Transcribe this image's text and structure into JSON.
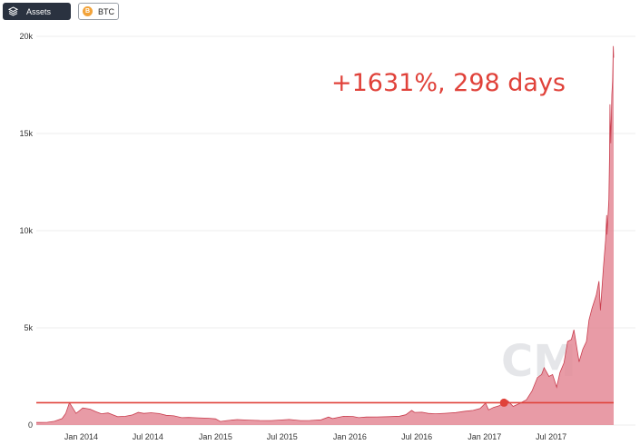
{
  "toolbar": {
    "assets_label": "Assets",
    "btc_label": "BTC",
    "btc_coin_glyph": "B",
    "assets_icon": "layers-icon",
    "btc_icon": "bitcoin-coin-icon",
    "btc_color": "#f2a33a"
  },
  "annotation": "+1631%, 298 days",
  "watermark": "CM",
  "colors": {
    "area_fill": "#e48996",
    "area_line": "#c93e4e",
    "threshold_line": "#e0423a",
    "marker": "#e0423a",
    "annotation": "#e0423a"
  },
  "chart_data": {
    "type": "area",
    "x_tick_labels": [
      "Jan 2014",
      "Jul 2014",
      "Jan 2015",
      "Jul 2015",
      "Jan 2016",
      "Jul 2016",
      "Jan 2017",
      "Jul 2017"
    ],
    "y_tick_labels": [
      "0",
      "5k",
      "10k",
      "15k",
      "20k"
    ],
    "y_ticks": [
      0,
      5000,
      10000,
      15000,
      20000
    ],
    "ylim": [
      0,
      20000
    ],
    "xlim": [
      "2013-09-01",
      "2017-12-18"
    ],
    "grid": true,
    "threshold_value": 1150,
    "marker": {
      "x": "2017-02-23",
      "y": 1150
    },
    "series": [
      {
        "points": [
          [
            "2013-09-01",
            130
          ],
          [
            "2013-10-01",
            140
          ],
          [
            "2013-10-20",
            190
          ],
          [
            "2013-11-10",
            330
          ],
          [
            "2013-11-20",
            600
          ],
          [
            "2013-11-30",
            1150
          ],
          [
            "2013-12-05",
            1000
          ],
          [
            "2013-12-18",
            600
          ],
          [
            "2013-12-25",
            700
          ],
          [
            "2014-01-05",
            880
          ],
          [
            "2014-01-25",
            820
          ],
          [
            "2014-02-10",
            680
          ],
          [
            "2014-02-25",
            580
          ],
          [
            "2014-03-15",
            620
          ],
          [
            "2014-04-10",
            430
          ],
          [
            "2014-05-01",
            450
          ],
          [
            "2014-05-20",
            520
          ],
          [
            "2014-06-05",
            650
          ],
          [
            "2014-06-20",
            600
          ],
          [
            "2014-07-10",
            630
          ],
          [
            "2014-08-01",
            590
          ],
          [
            "2014-08-20",
            500
          ],
          [
            "2014-09-10",
            470
          ],
          [
            "2014-10-01",
            380
          ],
          [
            "2014-10-20",
            390
          ],
          [
            "2014-11-15",
            370
          ],
          [
            "2014-12-10",
            350
          ],
          [
            "2015-01-01",
            320
          ],
          [
            "2015-01-14",
            180
          ],
          [
            "2015-02-01",
            230
          ],
          [
            "2015-03-01",
            280
          ],
          [
            "2015-04-01",
            250
          ],
          [
            "2015-05-01",
            235
          ],
          [
            "2015-06-01",
            230
          ],
          [
            "2015-07-01",
            260
          ],
          [
            "2015-07-20",
            285
          ],
          [
            "2015-08-20",
            230
          ],
          [
            "2015-09-15",
            235
          ],
          [
            "2015-10-15",
            265
          ],
          [
            "2015-11-04",
            410
          ],
          [
            "2015-11-15",
            330
          ],
          [
            "2015-12-15",
            450
          ],
          [
            "2016-01-10",
            440
          ],
          [
            "2016-01-25",
            380
          ],
          [
            "2016-02-15",
            410
          ],
          [
            "2016-03-15",
            415
          ],
          [
            "2016-04-15",
            430
          ],
          [
            "2016-05-15",
            455
          ],
          [
            "2016-06-01",
            530
          ],
          [
            "2016-06-17",
            750
          ],
          [
            "2016-06-25",
            650
          ],
          [
            "2016-07-15",
            660
          ],
          [
            "2016-08-01",
            600
          ],
          [
            "2016-08-20",
            580
          ],
          [
            "2016-09-15",
            605
          ],
          [
            "2016-10-15",
            640
          ],
          [
            "2016-11-10",
            710
          ],
          [
            "2016-12-01",
            750
          ],
          [
            "2016-12-20",
            850
          ],
          [
            "2017-01-04",
            1130
          ],
          [
            "2017-01-12",
            780
          ],
          [
            "2017-01-25",
            900
          ],
          [
            "2017-02-10",
            990
          ],
          [
            "2017-02-23",
            1150
          ],
          [
            "2017-03-05",
            1250
          ],
          [
            "2017-03-20",
            960
          ],
          [
            "2017-04-05",
            1100
          ],
          [
            "2017-04-25",
            1300
          ],
          [
            "2017-05-10",
            1750
          ],
          [
            "2017-05-25",
            2450
          ],
          [
            "2017-06-05",
            2600
          ],
          [
            "2017-06-12",
            2950
          ],
          [
            "2017-06-25",
            2500
          ],
          [
            "2017-07-05",
            2600
          ],
          [
            "2017-07-16",
            1950
          ],
          [
            "2017-07-25",
            2700
          ],
          [
            "2017-08-05",
            3200
          ],
          [
            "2017-08-15",
            4300
          ],
          [
            "2017-08-25",
            4400
          ],
          [
            "2017-09-01",
            4900
          ],
          [
            "2017-09-15",
            3250
          ],
          [
            "2017-09-25",
            3900
          ],
          [
            "2017-10-05",
            4300
          ],
          [
            "2017-10-12",
            5400
          ],
          [
            "2017-10-20",
            6000
          ],
          [
            "2017-11-01",
            6700
          ],
          [
            "2017-11-08",
            7400
          ],
          [
            "2017-11-12",
            5900
          ],
          [
            "2017-11-20",
            8100
          ],
          [
            "2017-11-26",
            9500
          ],
          [
            "2017-11-29",
            10800
          ],
          [
            "2017-11-30",
            9800
          ],
          [
            "2017-12-05",
            11600
          ],
          [
            "2017-12-07",
            14000
          ],
          [
            "2017-12-08",
            16500
          ],
          [
            "2017-12-10",
            14500
          ],
          [
            "2017-12-13",
            17000
          ],
          [
            "2017-12-15",
            17700
          ],
          [
            "2017-12-17",
            19500
          ],
          [
            "2017-12-18",
            18900
          ]
        ]
      }
    ]
  }
}
